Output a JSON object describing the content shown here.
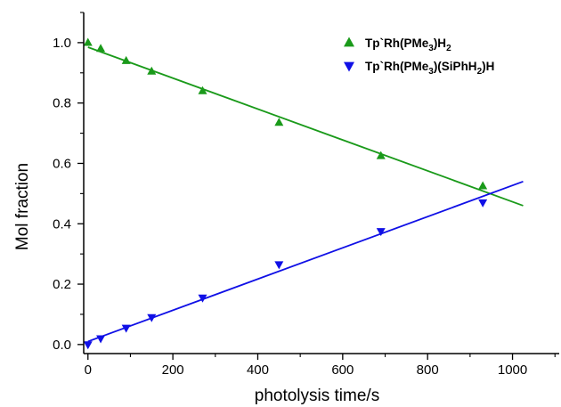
{
  "chart_data": {
    "type": "scatter",
    "xlabel": "photolysis time/s",
    "ylabel": "Mol fraction",
    "xlim": [
      -10,
      1110
    ],
    "ylim": [
      -0.03,
      1.1
    ],
    "xticks": [
      0,
      200,
      400,
      600,
      800,
      1000
    ],
    "yticks": [
      0.0,
      0.2,
      0.4,
      0.6,
      0.8,
      1.0
    ],
    "xtick_labels": [
      "0",
      "200",
      "400",
      "600",
      "800",
      "1000"
    ],
    "ytick_labels": [
      "0.0",
      "0.2",
      "0.4",
      "0.6",
      "0.8",
      "1.0"
    ],
    "grid": false,
    "legend_position": "top-right",
    "series": [
      {
        "name": "Tp`Rh(PMe3)H2",
        "legend_parts": {
          "a": "Tp`Rh(PMe",
          "sub1": "3",
          "b": ")H",
          "sub2": "2",
          "c": ""
        },
        "marker": "triangle-up",
        "color": "#1a9a1a",
        "x": [
          0,
          30,
          90,
          150,
          270,
          450,
          690,
          930
        ],
        "y": [
          1.0,
          0.98,
          0.94,
          0.905,
          0.84,
          0.735,
          0.625,
          0.525
        ],
        "fit_line": {
          "x": [
            0,
            1025
          ],
          "y": [
            0.985,
            0.46
          ]
        }
      },
      {
        "name": "Tp`Rh(PMe3)(SiPhH2)H",
        "legend_parts": {
          "a": "Tp`Rh(PMe",
          "sub1": "3",
          "b": ")(SiPhH",
          "sub2": "2",
          "c": ")H"
        },
        "marker": "triangle-down",
        "color": "#1010e6",
        "x": [
          0,
          30,
          90,
          150,
          270,
          450,
          690,
          930
        ],
        "y": [
          0.0,
          0.02,
          0.055,
          0.09,
          0.155,
          0.265,
          0.375,
          0.47
        ],
        "fit_line": {
          "x": [
            0,
            1025
          ],
          "y": [
            0.01,
            0.54
          ]
        }
      }
    ]
  }
}
